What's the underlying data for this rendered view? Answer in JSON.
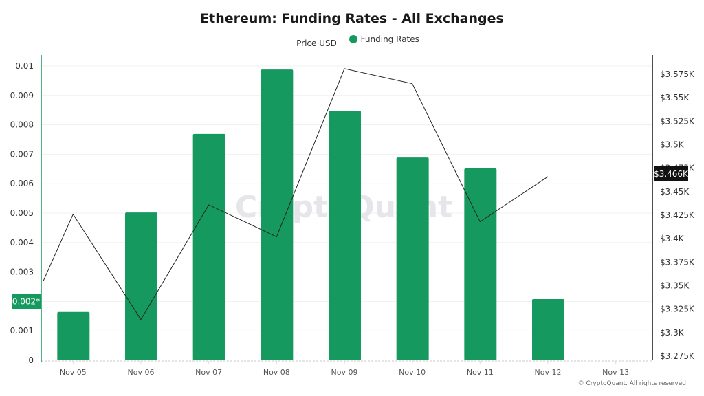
{
  "header": {
    "title": "Ethereum: Funding Rates - All Exchanges"
  },
  "legend": {
    "price_label": "Price USD",
    "funding_label": "Funding Rates"
  },
  "colors": {
    "bar": "#16995e",
    "line": "#222222",
    "left_axis": "#16995e",
    "right_axis": "#111111",
    "price_badge_bg": "#111111",
    "left_badge_bg": "#16995e"
  },
  "watermark": "CryptoQuant",
  "footer": "© CryptoQuant. All rights reserved",
  "left_axis_badge": "0.002*",
  "right_axis_badge": "$3.466K",
  "chart_data": {
    "type": "bar",
    "title": "Ethereum: Funding Rates - All Exchanges",
    "xlabel": "",
    "ylabel": "Funding Rates",
    "y2label": "Price USD",
    "legend_position": "top",
    "grid": true,
    "categories": [
      "Nov 05",
      "Nov 06",
      "Nov 07",
      "Nov 08",
      "Nov 09",
      "Nov 10",
      "Nov 11",
      "Nov 12",
      "Nov 13"
    ],
    "ylim": [
      0,
      0.01
    ],
    "y_ticks": [
      "0",
      "0.001",
      "0.002*",
      "0.003",
      "0.004",
      "0.005",
      "0.006",
      "0.007",
      "0.008",
      "0.009",
      "0.01"
    ],
    "y2lim": [
      3275,
      3575
    ],
    "y2_ticks": [
      "$3.275K",
      "$3.3K",
      "$3.325K",
      "$3.35K",
      "$3.375K",
      "$3.4K",
      "$3.425K",
      "$3.45K",
      "$3.475K",
      "$3.5K",
      "$3.525K",
      "$3.55K",
      "$3.575K"
    ],
    "series": [
      {
        "name": "Funding Rates",
        "type": "bar",
        "axis": "left",
        "values": [
          0.00164,
          0.00502,
          0.00769,
          0.00988,
          0.00848,
          0.00689,
          0.00652,
          0.00208,
          null
        ]
      },
      {
        "name": "Price USD",
        "type": "line",
        "axis": "right",
        "start_value": 3355,
        "values": [
          3426,
          3314,
          3436,
          3402,
          3581,
          3565,
          3418,
          3466,
          null
        ]
      }
    ]
  }
}
